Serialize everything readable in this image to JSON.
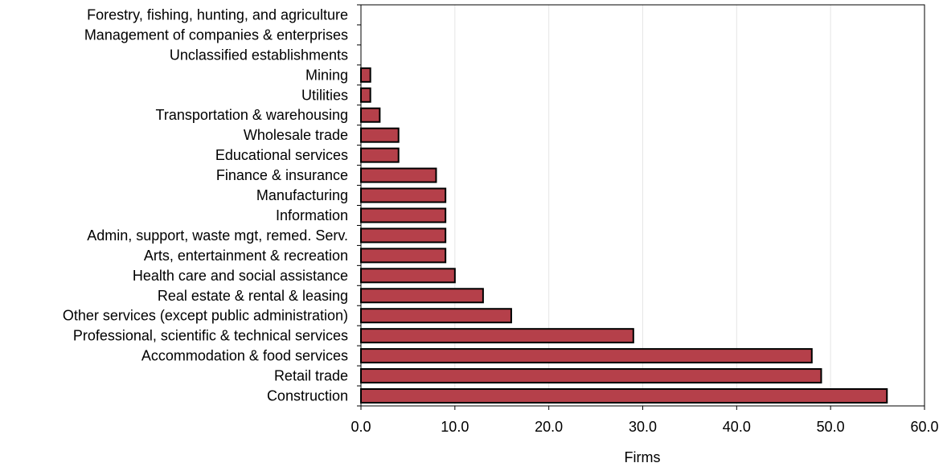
{
  "chart_data": {
    "type": "bar",
    "orientation": "horizontal",
    "title": "",
    "xlabel": "Firms",
    "ylabel": "",
    "xlim": [
      0,
      60
    ],
    "x_ticks": [
      0,
      10,
      20,
      30,
      40,
      50,
      60
    ],
    "x_tick_labels": [
      "0.0",
      "10.0",
      "20.0",
      "30.0",
      "40.0",
      "50.0",
      "60.0"
    ],
    "grid": "vertical gridlines",
    "legend": "none",
    "bar_color": "#b5404a",
    "categories": [
      "Forestry, fishing, hunting, and agriculture",
      "Management of companies & enterprises",
      "Unclassified establishments",
      "Mining",
      "Utilities",
      "Transportation & warehousing",
      "Wholesale trade",
      "Educational services",
      "Finance & insurance",
      "Manufacturing",
      "Information",
      "Admin, support, waste mgt, remed. Serv.",
      "Arts, entertainment & recreation",
      "Health care and social assistance",
      "Real estate & rental & leasing",
      "Other services (except public administration)",
      "Professional, scientific & technical services",
      "Accommodation & food services",
      "Retail trade",
      "Construction"
    ],
    "values": [
      0,
      0,
      0,
      1,
      1,
      2,
      4,
      4,
      8,
      9,
      9,
      9,
      9,
      10,
      13,
      16,
      29,
      48,
      49,
      56
    ]
  }
}
